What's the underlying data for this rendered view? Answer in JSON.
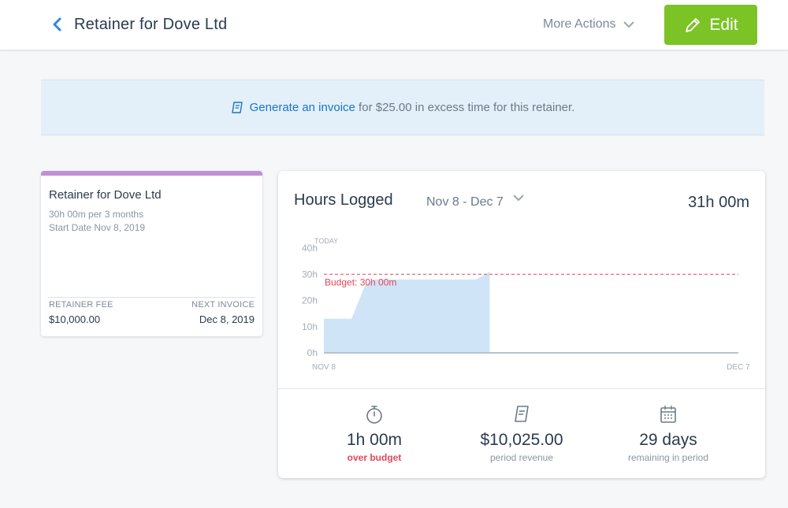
{
  "header": {
    "title": "Retainer for Dove Ltd",
    "more_actions": "More Actions",
    "edit_label": "Edit"
  },
  "banner": {
    "link_text": "Generate an invoice",
    "rest_text": " for $25.00 in excess time for this retainer."
  },
  "retainer_card": {
    "title": "Retainer for Dove Ltd",
    "schedule": "30h 00m per 3 months",
    "start_date": "Start Date Nov 8, 2019",
    "fee_label": "RETAINER FEE",
    "fee_value": "$10,000.00",
    "next_invoice_label": "NEXT INVOICE",
    "next_invoice_value": "Dec 8, 2019",
    "accent_color": "#c18fd3"
  },
  "hours_panel": {
    "title": "Hours Logged",
    "range": "Nov 8 - Dec 7",
    "total": "31h 00m"
  },
  "chart_data": {
    "type": "area",
    "x_start_label": "NOV 8",
    "x_end_label": "DEC 7",
    "period_days": 30,
    "ylim": [
      0,
      40
    ],
    "y_ticks": [
      "0h",
      "10h",
      "20h",
      "30h",
      "40h"
    ],
    "today_label": "TODAY",
    "budget": {
      "value": 30,
      "label": "Budget: 30h 00m",
      "color": "#e0475b"
    },
    "fill_color": "#cfe4f6",
    "series": [
      {
        "values": [
          [
            0,
            13
          ],
          [
            2,
            13
          ],
          [
            3,
            26
          ],
          [
            3.7,
            28
          ],
          [
            11,
            28
          ],
          [
            11.7,
            30
          ],
          [
            12,
            31
          ]
        ]
      }
    ]
  },
  "stats": [
    {
      "icon": "stopwatch-icon",
      "value": "1h 00m",
      "label": "over budget",
      "alert": true
    },
    {
      "icon": "invoice-icon",
      "value": "$10,025.00",
      "label": "period revenue",
      "alert": false
    },
    {
      "icon": "calendar-icon",
      "value": "29 days",
      "label": "remaining in period",
      "alert": false
    }
  ],
  "colors": {
    "accent_green": "#7cc326",
    "link_blue": "#1875c8",
    "alert_red": "#e0475b"
  }
}
